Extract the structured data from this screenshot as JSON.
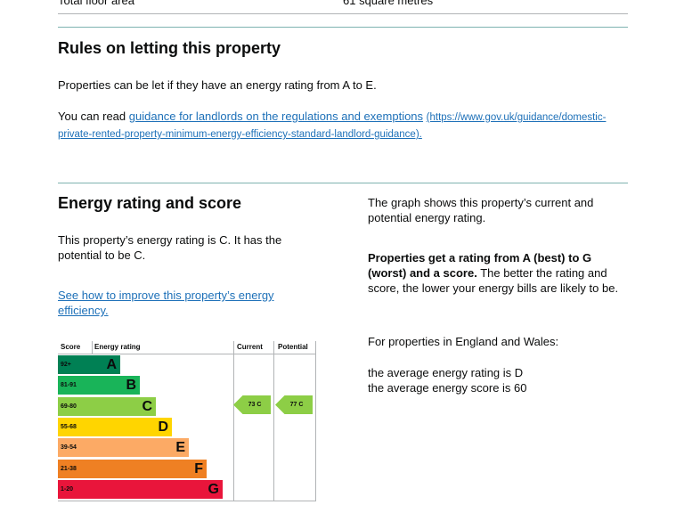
{
  "summary": {
    "label": "Total floor area",
    "value": "61 square metres"
  },
  "letting": {
    "title": "Rules on letting this property",
    "text": "Properties can be let if they have an energy rating from A to E.",
    "link_prefix": "You can read",
    "link": "guidance for landlords on the regulations and exemptions",
    "url": "(https://www.gov.uk/guidance/domestic-private-rented-property-minimum-energy-efficiency-standard-landlord-guidance)."
  },
  "energy": {
    "title": "Energy rating and score",
    "rating_text": "This property’s energy rating is C. It has the potential to be C.",
    "improve_link": "See how to improve this property’s energy efficiency.",
    "graph_text": "The graph shows this property’s current and potential energy rating.",
    "bold_text": "Properties get a rating from A (best) to G (worst) and a score.",
    "rest_text": "The better the rating and score, the lower your energy bills are likely to be.",
    "region": "For properties in England and Wales:",
    "average_rating": "the average energy rating is D",
    "average_score": "the average energy score is 60"
  },
  "chart": {
    "headers": [
      "Score",
      "Energy rating",
      "Current",
      "Potential"
    ],
    "bands": [
      {
        "range": "92+",
        "letter": "A"
      },
      {
        "range": "81-91",
        "letter": "B"
      },
      {
        "range": "69-80",
        "letter": "C"
      },
      {
        "range": "55-68",
        "letter": "D"
      },
      {
        "range": "39-54",
        "letter": "E"
      },
      {
        "range": "21-38",
        "letter": "F"
      },
      {
        "range": "1-20",
        "letter": "G"
      }
    ],
    "current": "73 C",
    "potential": "77 C"
  }
}
